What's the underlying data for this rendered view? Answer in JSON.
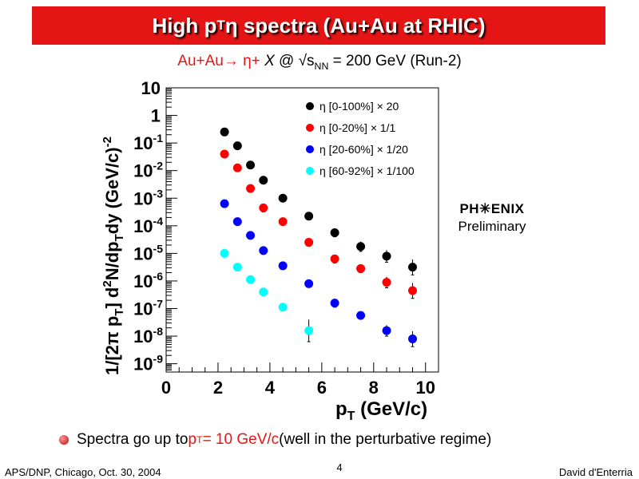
{
  "slide": {
    "title_main": "High p",
    "title_sub": "T",
    "title_rest": " η spectra (Au+Au at RHIC)",
    "subtitle_red": "Au+Au→ η+",
    "subtitle_x": "X",
    "subtitle_at": " @ √s",
    "subtitle_nn": "NN",
    "subtitle_rest": " = 200 GeV (Run-2)",
    "bullet_pre": "Spectra go up to ",
    "bullet_red_p": "p",
    "bullet_red_sub": "T",
    "bullet_red_rest": " = 10 GeV/c",
    "bullet_post": " (well in the perturbative regime)",
    "footer_left": "APS/DNP, Chicago, Oct. 30, 2004",
    "footer_page": "4",
    "footer_right": "David d'Enterria",
    "logo_text": "PH✳ENIX",
    "logo_sub": "Preliminary"
  },
  "chart_data": {
    "type": "scatter",
    "x_axis_label": "p",
    "x_axis_label_sub": "T",
    "x_axis_label_unit": " (GeV/c)",
    "y_axis_label": "1/[2π p",
    "y_axis_label_sub": "T",
    "y_axis_label_rest": "] d",
    "y_axis_label_sup": "2",
    "y_axis_label_tail": "N/dp",
    "y_axis_label_sub2": "T",
    "y_axis_label_end": "dy (GeV/c)",
    "y_axis_label_sup2": "-2",
    "x_range": [
      0,
      10.5
    ],
    "y_log": true,
    "y_range_log10": [
      -9.3,
      1
    ],
    "x_ticks": [
      "0",
      "2",
      "4",
      "6",
      "8",
      "10"
    ],
    "y_ticks": [
      {
        "base": "10",
        "exp": ""
      },
      {
        "base": "1",
        "exp": ""
      },
      {
        "base": "10",
        "exp": "-1"
      },
      {
        "base": "10",
        "exp": "-2"
      },
      {
        "base": "10",
        "exp": "-3"
      },
      {
        "base": "10",
        "exp": "-4"
      },
      {
        "base": "10",
        "exp": "-5"
      },
      {
        "base": "10",
        "exp": "-6"
      },
      {
        "base": "10",
        "exp": "-7"
      },
      {
        "base": "10",
        "exp": "-8"
      },
      {
        "base": "10",
        "exp": "-9"
      }
    ],
    "legend_position": "top-right",
    "series": [
      {
        "name": "η [0-100%]",
        "scale": "× 20",
        "color": "#000000",
        "x": [
          2.25,
          2.75,
          3.25,
          3.75,
          4.5,
          5.5,
          6.5,
          7.5,
          8.5,
          9.5
        ],
        "log10_y": [
          -0.6,
          -1.1,
          -1.8,
          -2.35,
          -3.0,
          -3.65,
          -4.25,
          -4.75,
          -5.1,
          -5.5
        ],
        "err_log10": [
          0.05,
          0.05,
          0.08,
          0.08,
          0.1,
          0.12,
          0.15,
          0.18,
          0.22,
          0.28
        ]
      },
      {
        "name": "η [0-20%]",
        "scale": "× 1/1",
        "color": "#ff0000",
        "x": [
          2.25,
          2.75,
          3.25,
          3.75,
          4.5,
          5.5,
          6.5,
          7.5,
          8.5,
          9.5
        ],
        "log10_y": [
          -1.4,
          -1.9,
          -2.65,
          -3.35,
          -3.85,
          -4.6,
          -5.2,
          -5.55,
          -6.05,
          -6.35
        ],
        "err_log10": [
          0.1,
          0.08,
          0.08,
          0.15,
          0.1,
          0.12,
          0.15,
          0.15,
          0.2,
          0.28
        ]
      },
      {
        "name": "η [20-60%]",
        "scale": "× 1/20",
        "color": "#0000ff",
        "x": [
          2.25,
          2.75,
          3.25,
          3.75,
          4.5,
          5.5,
          6.5,
          7.5,
          8.5,
          9.5
        ],
        "log10_y": [
          -3.2,
          -3.85,
          -4.35,
          -4.9,
          -5.45,
          -6.1,
          -6.8,
          -7.25,
          -7.8,
          -8.1
        ],
        "err_log10": [
          0.06,
          0.06,
          0.06,
          0.08,
          0.08,
          0.1,
          0.15,
          0.1,
          0.2,
          0.28
        ]
      },
      {
        "name": "η [60-92%]",
        "scale": "× 1/100",
        "color": "#00ffff",
        "x": [
          2.25,
          2.75,
          3.25,
          3.75,
          4.5,
          5.5
        ],
        "log10_y": [
          -5.0,
          -5.5,
          -5.95,
          -6.4,
          -6.95,
          -7.8
        ],
        "err_log10": [
          0.08,
          0.08,
          0.08,
          0.1,
          0.1,
          0.4
        ]
      }
    ]
  }
}
